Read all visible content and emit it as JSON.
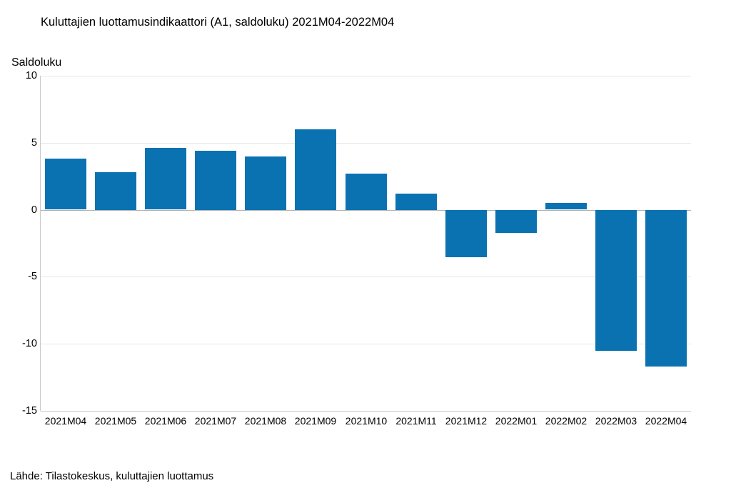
{
  "page": {
    "title": "Kuluttajien luottamusindikaattori (A1, saldoluku) 2021M04-2022M04",
    "source": "Lähde: Tilastokeskus, kuluttajien luottamus"
  },
  "chart_data": {
    "type": "bar",
    "title": "Kuluttajien luottamusindikaattori (A1, saldoluku) 2021M04-2022M04",
    "ylabel": "Saldoluku",
    "xlabel": "",
    "categories": [
      "2021M04",
      "2021M05",
      "2021M06",
      "2021M07",
      "2021M08",
      "2021M09",
      "2021M10",
      "2021M11",
      "2021M12",
      "2022M01",
      "2022M02",
      "2022M03",
      "2022M04"
    ],
    "values": [
      3.8,
      2.8,
      4.6,
      4.4,
      4.0,
      6.0,
      2.7,
      1.2,
      -3.5,
      -1.7,
      0.5,
      -10.5,
      -11.7
    ],
    "ylim": [
      -15,
      10
    ],
    "yticks": [
      10,
      5,
      0,
      -5,
      -10,
      -15
    ],
    "grid": true,
    "legend": "none",
    "source": "Lähde: Tilastokeskus, kuluttajien luottamus",
    "colors": {
      "bar": "#0b72b2",
      "gridline": "#e7e7e7",
      "zero_line": "#b3b3b3",
      "axis_line": "#c9c9c9",
      "text": "#000000",
      "background": "#ffffff"
    }
  }
}
